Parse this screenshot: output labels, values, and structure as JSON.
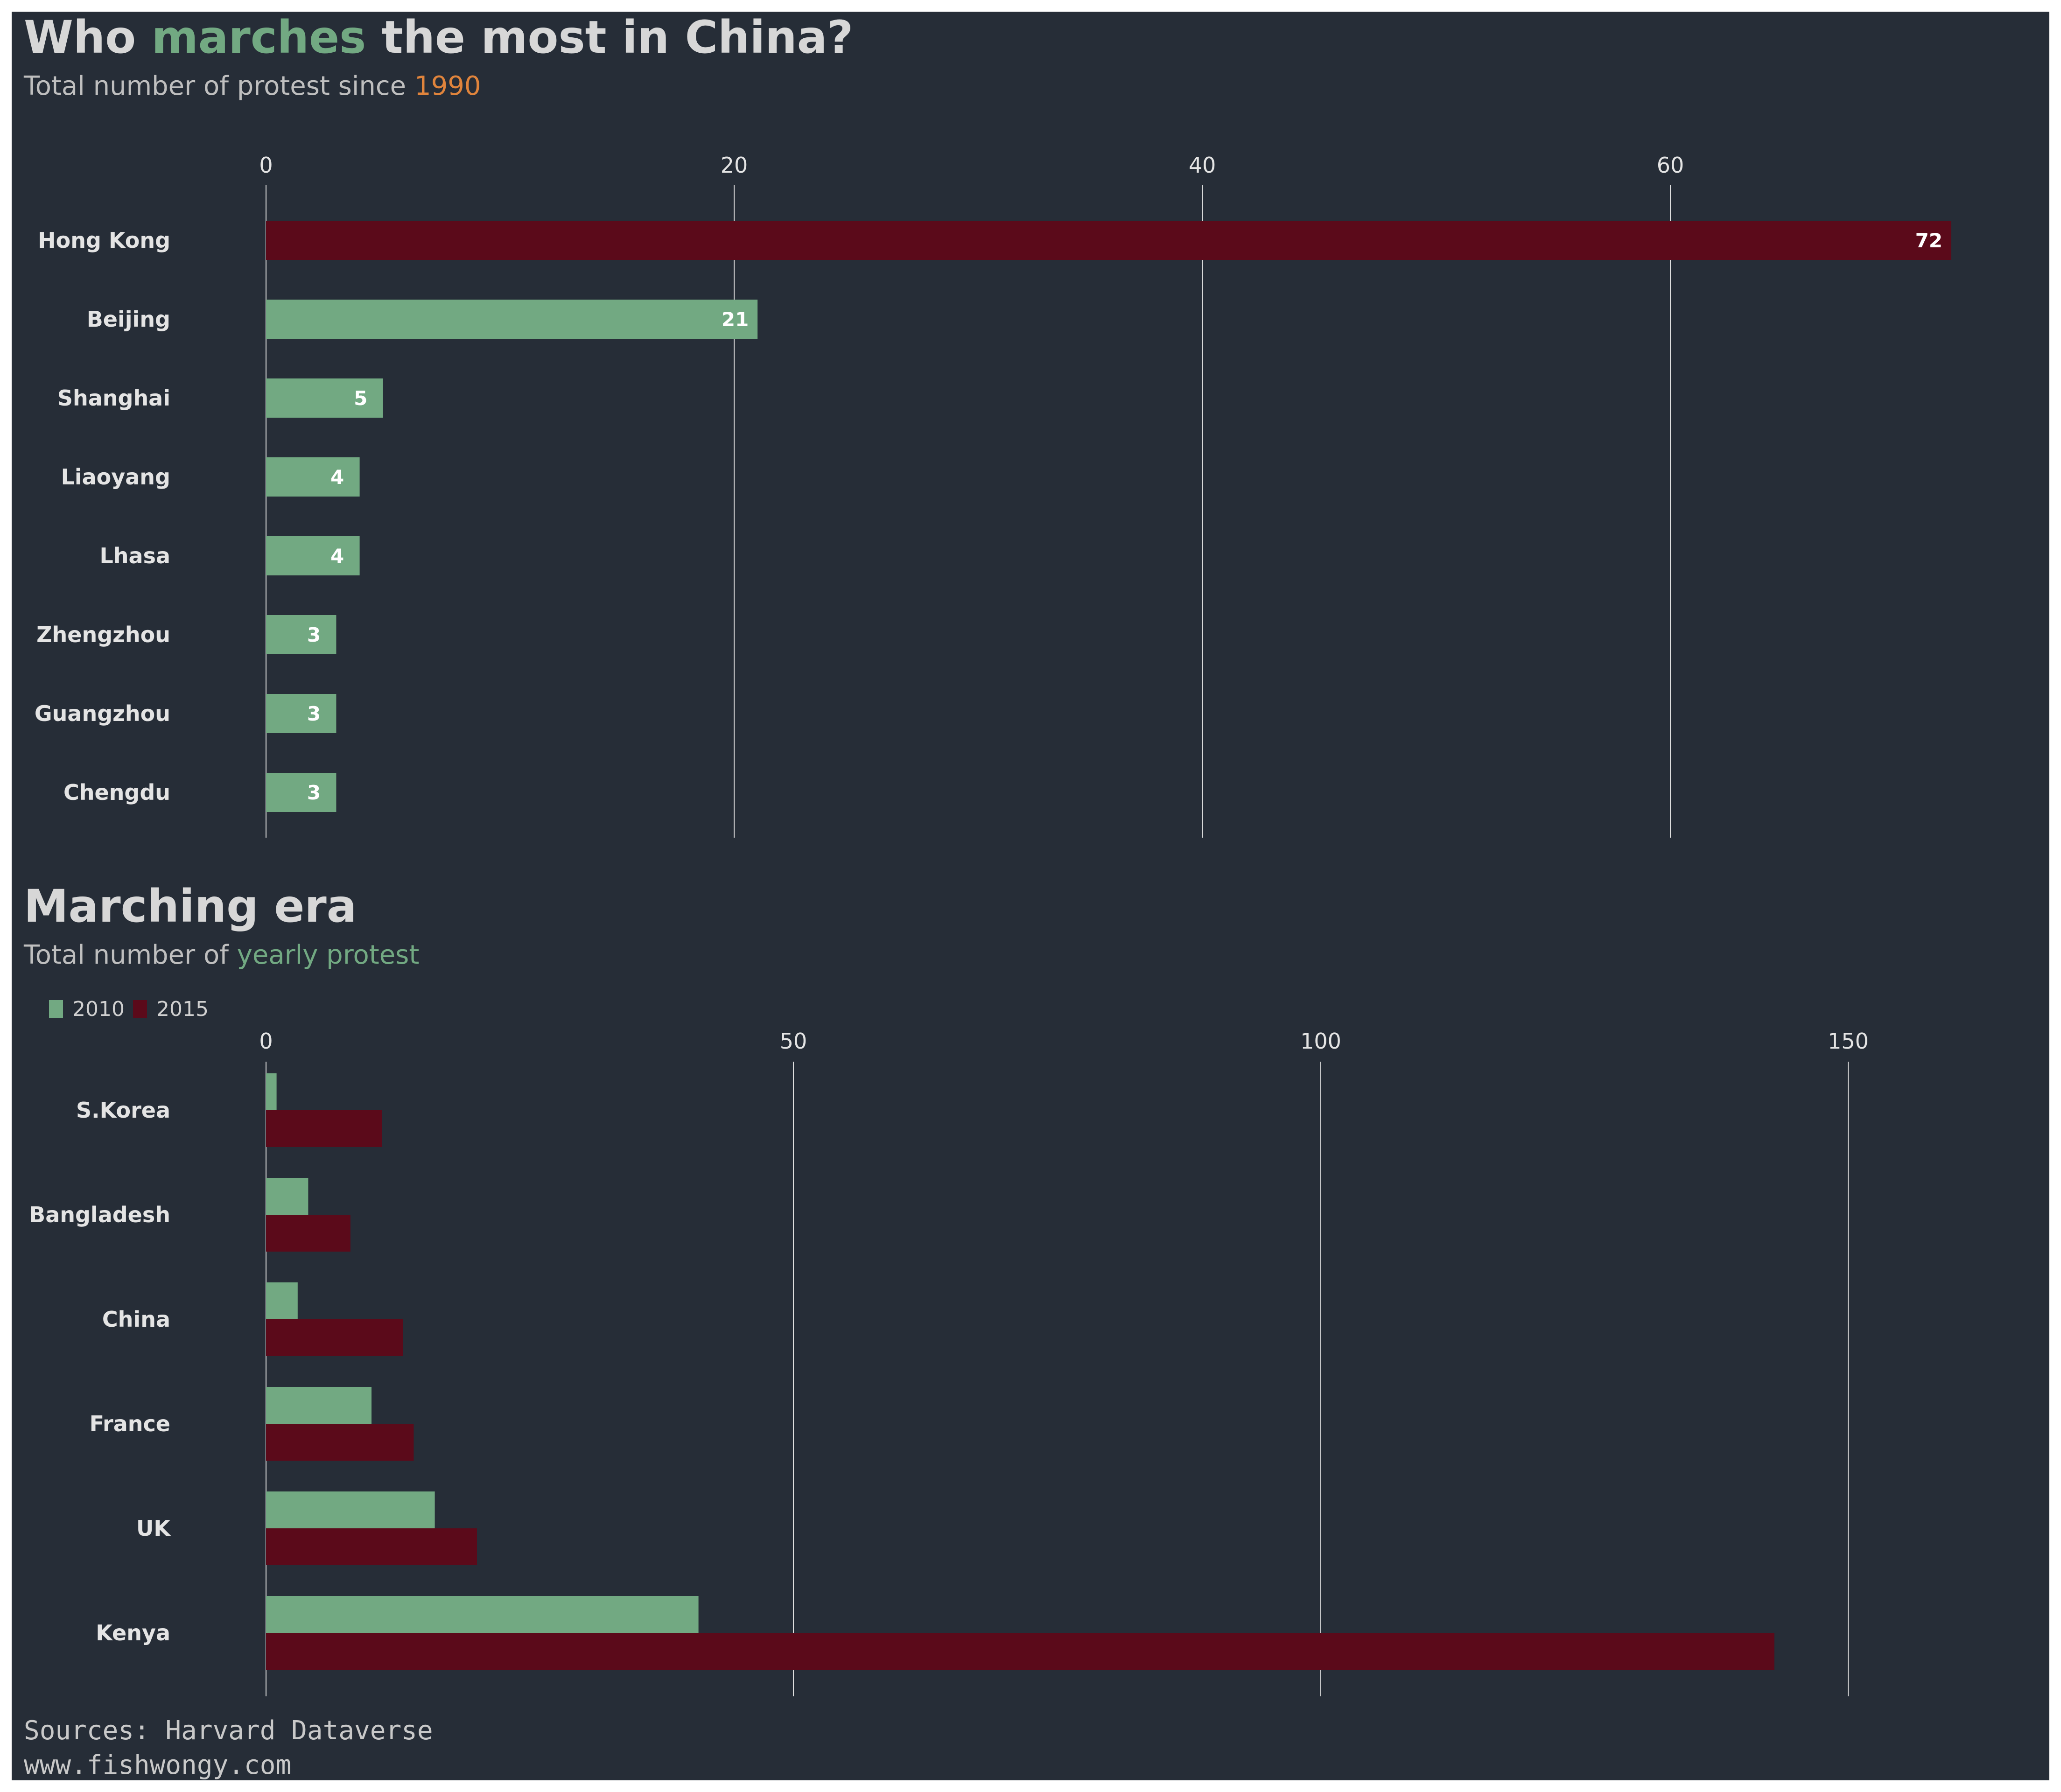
{
  "colors": {
    "background": "#262d37",
    "green": "#72a982",
    "dark_red": "#5b0a1a",
    "orange": "#e0843c",
    "grid": "#dddddd",
    "text": "#e4e4e4"
  },
  "chart1": {
    "title_parts": [
      "Who ",
      "marches",
      " the most in China?"
    ],
    "subtitle_parts": [
      "Total number of protest since ",
      "1990"
    ]
  },
  "chart2": {
    "title": "Marching era",
    "subtitle_parts": [
      "Total number of ",
      "yearly protest"
    ]
  },
  "footer": {
    "source": "Sources: Harvard Dataverse",
    "website": "www.fishwongy.com"
  },
  "chart_data": [
    {
      "type": "bar",
      "orientation": "horizontal",
      "categories": [
        "Hong Kong",
        "Beijing",
        "Shanghai",
        "Liaoyang",
        "Lhasa",
        "Zhengzhou",
        "Guangzhou",
        "Chengdu"
      ],
      "values": [
        72,
        21,
        5,
        4,
        4,
        3,
        3,
        3
      ],
      "highlight": "Hong Kong",
      "title": "Who marches the most in China?",
      "subtitle": "Total number of protest since 1990",
      "xticks": [
        0,
        20,
        40,
        60
      ],
      "xlim": [
        0,
        72
      ],
      "data_labels": true,
      "axis_position": "top",
      "grid": true
    },
    {
      "type": "bar",
      "orientation": "horizontal",
      "categories": [
        "S.Korea",
        "Bangladesh",
        "China",
        "France",
        "UK",
        "Kenya"
      ],
      "series": [
        {
          "name": "2010",
          "color": "#72a982",
          "values": [
            1,
            4,
            3,
            10,
            16,
            41
          ]
        },
        {
          "name": "2015",
          "color": "#5b0a1a",
          "values": [
            11,
            8,
            13,
            14,
            20,
            143
          ]
        }
      ],
      "title": "Marching era",
      "subtitle": "Total number of yearly protest",
      "xticks": [
        0,
        50,
        100,
        150
      ],
      "xlim": [
        0,
        160
      ],
      "legend": "top-left",
      "axis_position": "top",
      "grid": true
    }
  ]
}
